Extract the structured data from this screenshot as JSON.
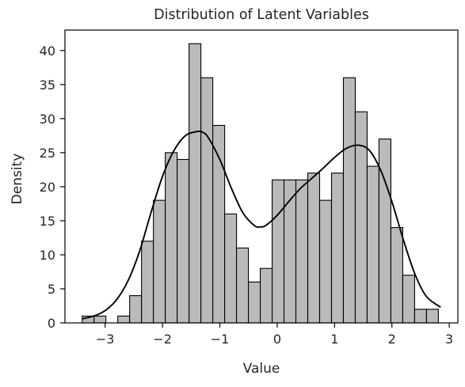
{
  "chart_data": {
    "type": "histogram",
    "title": "Distribution of Latent Variables",
    "xlabel": "Value",
    "ylabel": "Density",
    "xlim": [
      -3.7,
      3.15
    ],
    "ylim": [
      0,
      43
    ],
    "xticks": [
      -3,
      -2,
      -1,
      0,
      1,
      2,
      3
    ],
    "xtick_labels": [
      "−3",
      "−2",
      "−1",
      "0",
      "1",
      "2",
      "3"
    ],
    "yticks": [
      0,
      5,
      10,
      15,
      20,
      25,
      30,
      35,
      40
    ],
    "ytick_labels": [
      "0",
      "5",
      "10",
      "15",
      "20",
      "25",
      "30",
      "35",
      "40"
    ],
    "bins": {
      "start": -3.4,
      "width": 0.207,
      "counts": [
        1,
        1,
        0,
        1,
        4,
        12,
        18,
        25,
        24,
        41,
        36,
        29,
        16,
        11,
        6,
        8,
        21,
        21,
        21,
        22,
        18,
        22,
        36,
        31,
        23,
        27,
        14,
        7,
        2,
        2
      ]
    },
    "kde": {
      "x": [
        -3.4,
        -3.2,
        -3.0,
        -2.8,
        -2.6,
        -2.4,
        -2.2,
        -2.0,
        -1.8,
        -1.6,
        -1.4,
        -1.3,
        -1.2,
        -1.0,
        -0.8,
        -0.6,
        -0.4,
        -0.3,
        -0.2,
        0.0,
        0.2,
        0.4,
        0.6,
        0.8,
        1.0,
        1.2,
        1.4,
        1.6,
        1.8,
        2.0,
        2.2,
        2.4,
        2.6,
        2.85
      ],
      "y": [
        0.6,
        1.0,
        1.8,
        3.4,
        6.2,
        10.5,
        16.2,
        21.5,
        25.3,
        27.5,
        28.1,
        28.0,
        27.2,
        24.0,
        19.8,
        16.2,
        14.3,
        14.1,
        14.3,
        15.8,
        17.8,
        19.7,
        21.2,
        22.7,
        24.3,
        25.6,
        26.1,
        25.4,
        22.5,
        17.8,
        12.2,
        7.2,
        3.9,
        2.3
      ],
      "color": "#000000"
    },
    "bar_color": "#bababa",
    "grid": false
  }
}
